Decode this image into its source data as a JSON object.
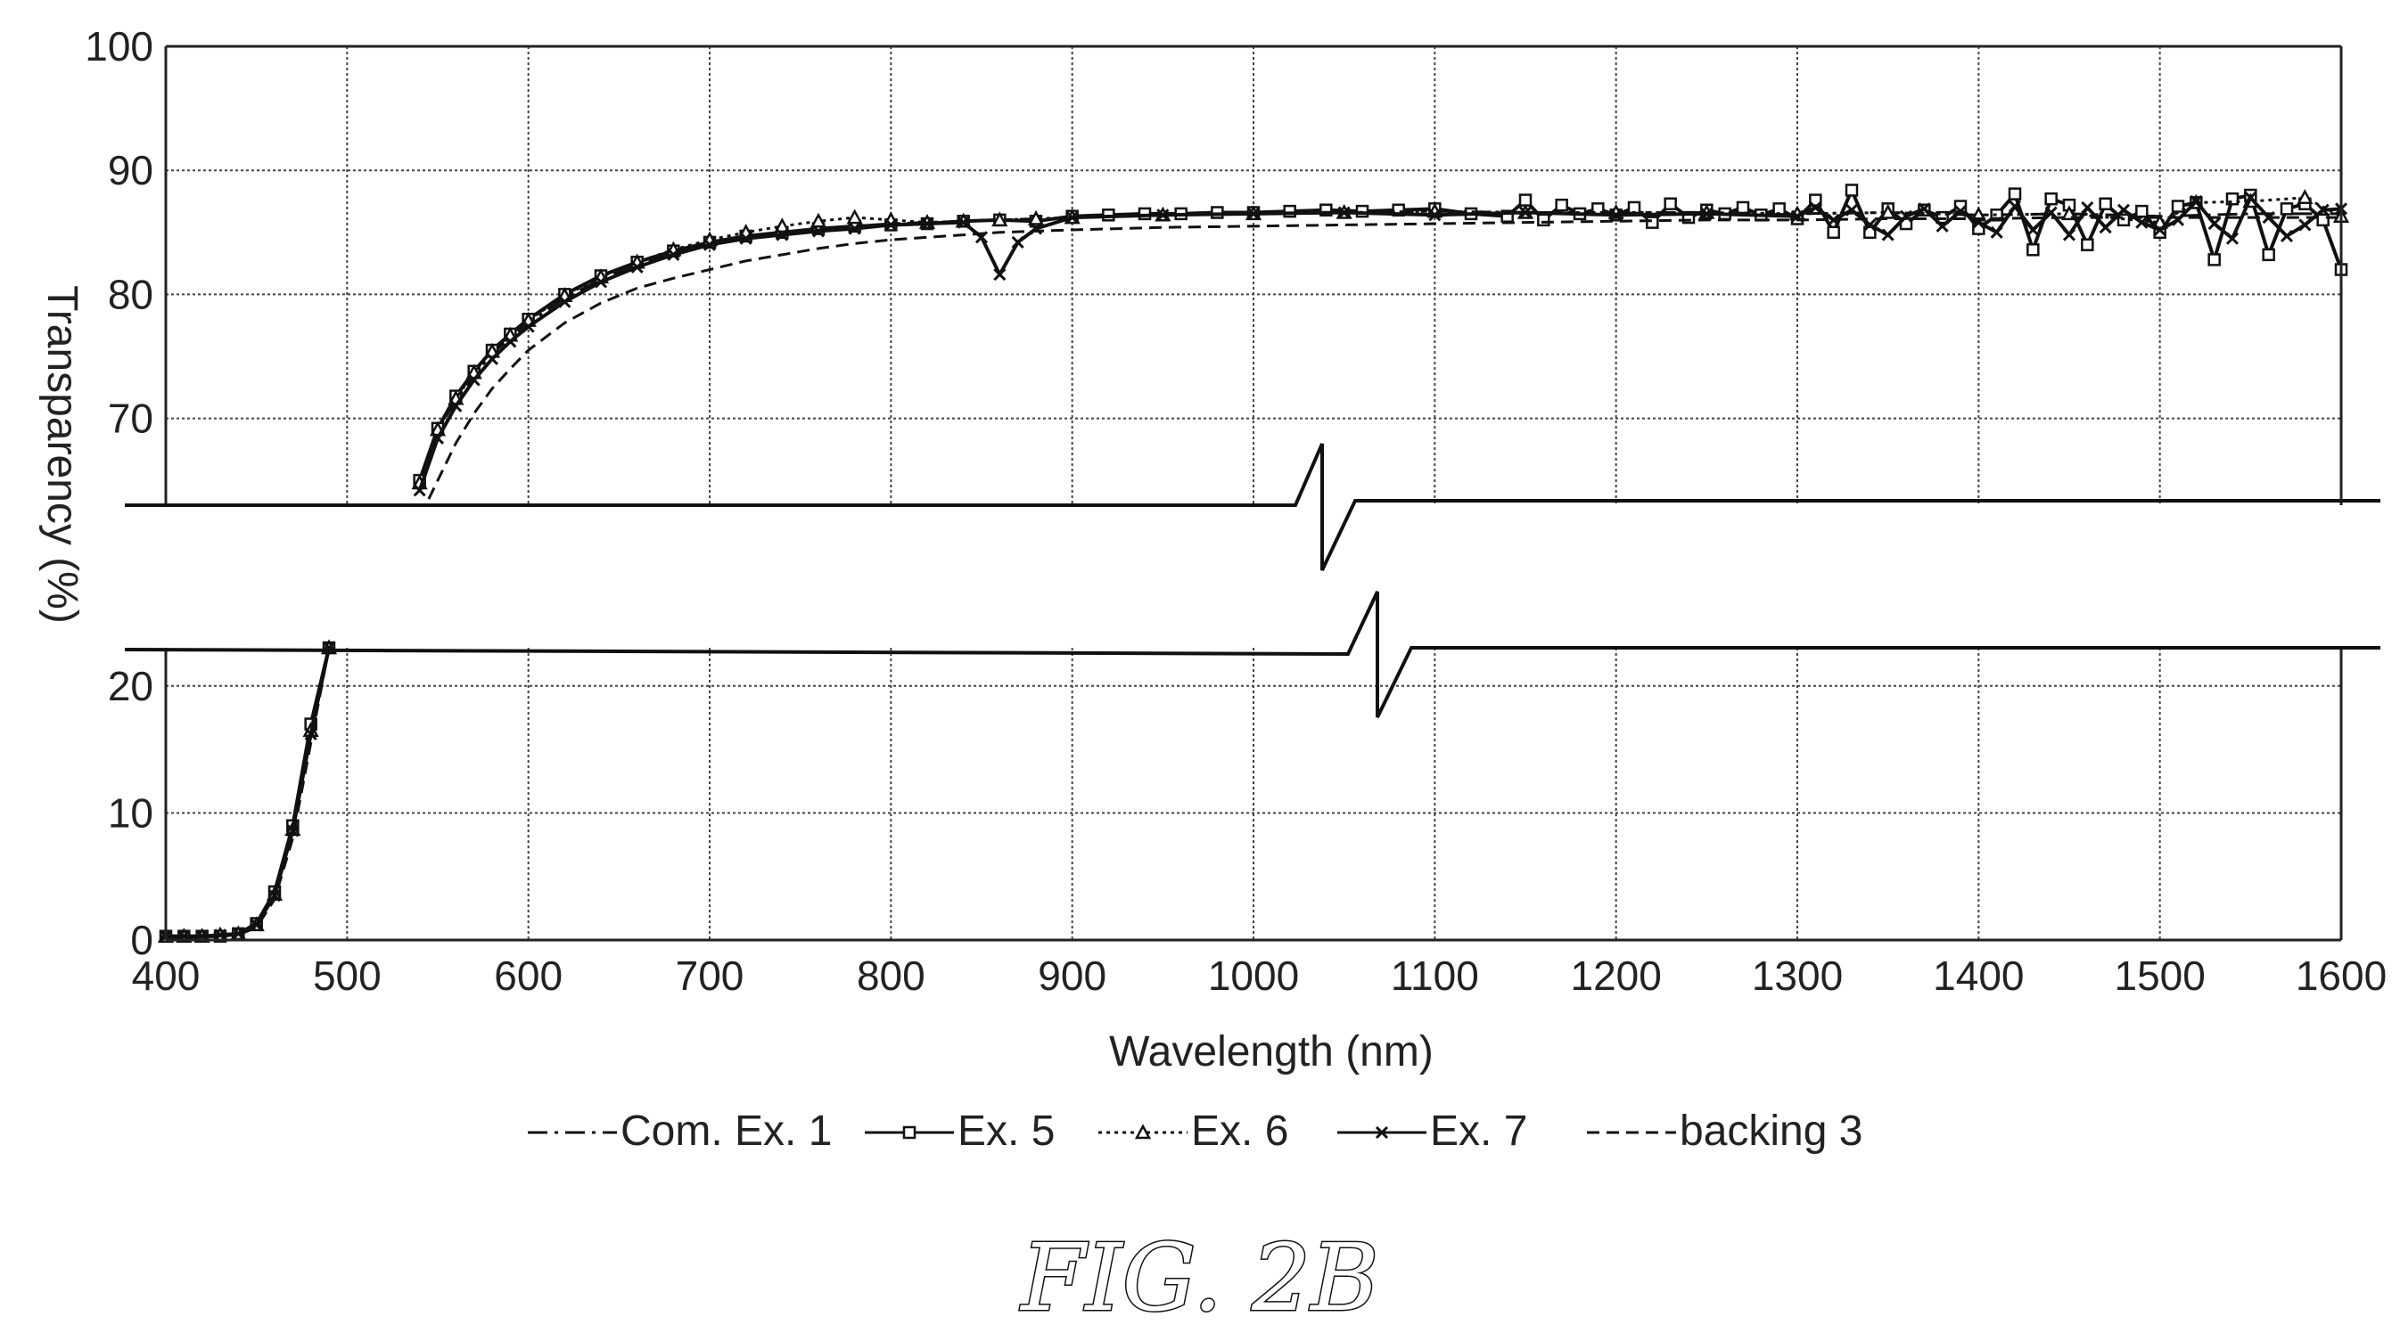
{
  "figure": {
    "caption": "FIG. 2B"
  },
  "chart_data": {
    "type": "line",
    "title": "",
    "xlabel": "Wavelength (nm)",
    "ylabel": "Transparency (%)",
    "xlim": [
      400,
      1600
    ],
    "ylim_upper_panel": [
      63,
      100
    ],
    "ylim_lower_panel": [
      0,
      23
    ],
    "axis_break": "between 23 and 63 on the y axis, break marks near x = 1050",
    "grid": true,
    "legend_position": "bottom",
    "x_ticks": [
      400,
      500,
      600,
      700,
      800,
      900,
      1000,
      1100,
      1200,
      1300,
      1400,
      1500,
      1600
    ],
    "y_ticks": [
      0,
      10,
      20,
      70,
      80,
      90,
      100
    ],
    "series": [
      {
        "name": "Com. Ex. 1",
        "line_style": "dash-dot",
        "marker": "none",
        "x": [
          400,
          410,
          420,
          430,
          440,
          450,
          460,
          470,
          480,
          490,
          540,
          550,
          560,
          570,
          580,
          590,
          600,
          620,
          640,
          660,
          680,
          700,
          720,
          740,
          760,
          780,
          800,
          820,
          840,
          860,
          880,
          900,
          950,
          1000,
          1050,
          1100,
          1150,
          1200,
          1250,
          1300,
          1350,
          1400,
          1450,
          1500,
          1550,
          1600
        ],
        "y": [
          0.3,
          0.3,
          0.3,
          0.4,
          0.5,
          1.2,
          3.5,
          8.5,
          16,
          23,
          64.5,
          69,
          71.5,
          73.5,
          75.2,
          76.5,
          77.7,
          79.7,
          81.2,
          82.4,
          83.3,
          84.0,
          84.5,
          84.9,
          85.2,
          85.5,
          85.7,
          85.8,
          85.9,
          86.0,
          86.1,
          86.2,
          86.4,
          86.5,
          86.6,
          86.7,
          86.6,
          86.6,
          86.6,
          86.5,
          86.6,
          86.4,
          86.5,
          86.3,
          86.5,
          86.5
        ]
      },
      {
        "name": "Ex. 5",
        "line_style": "solid",
        "marker": "square",
        "x": [
          400,
          410,
          420,
          430,
          440,
          450,
          460,
          470,
          480,
          490,
          540,
          550,
          560,
          570,
          580,
          590,
          600,
          620,
          640,
          660,
          680,
          700,
          720,
          740,
          760,
          780,
          800,
          820,
          840,
          860,
          880,
          900,
          920,
          940,
          960,
          980,
          1000,
          1020,
          1040,
          1060,
          1080,
          1100,
          1120,
          1140,
          1150,
          1160,
          1170,
          1180,
          1190,
          1200,
          1210,
          1220,
          1230,
          1240,
          1250,
          1260,
          1270,
          1280,
          1290,
          1300,
          1310,
          1320,
          1330,
          1340,
          1350,
          1360,
          1370,
          1380,
          1390,
          1400,
          1410,
          1420,
          1430,
          1440,
          1450,
          1460,
          1470,
          1480,
          1490,
          1500,
          1510,
          1520,
          1530,
          1540,
          1550,
          1560,
          1570,
          1580,
          1590,
          1600
        ],
        "y": [
          0.3,
          0.3,
          0.3,
          0.3,
          0.5,
          1.3,
          3.8,
          9.0,
          17.0,
          23,
          65,
          69.2,
          71.8,
          73.8,
          75.5,
          76.8,
          78.0,
          80.0,
          81.5,
          82.6,
          83.5,
          84.2,
          84.7,
          85.0,
          85.3,
          85.5,
          85.6,
          85.7,
          85.9,
          86.0,
          85.9,
          86.3,
          86.4,
          86.5,
          86.5,
          86.6,
          86.6,
          86.7,
          86.8,
          86.7,
          86.8,
          86.9,
          86.5,
          86.3,
          87.6,
          86.0,
          87.2,
          86.5,
          86.9,
          86.4,
          87.0,
          85.8,
          87.3,
          86.2,
          86.8,
          86.5,
          87.0,
          86.4,
          86.9,
          86.1,
          87.6,
          85.0,
          88.4,
          85.0,
          86.9,
          85.7,
          86.8,
          86.2,
          87.1,
          85.3,
          86.4,
          88.1,
          83.6,
          87.7,
          87.2,
          84.0,
          87.3,
          86.0,
          86.7,
          85.0,
          87.1,
          87.4,
          82.8,
          87.7,
          88.0,
          83.2,
          86.9,
          87.3,
          86.0,
          82.0
        ]
      },
      {
        "name": "Ex. 6",
        "line_style": "dotted",
        "marker": "triangle",
        "x": [
          400,
          410,
          420,
          430,
          440,
          450,
          460,
          470,
          480,
          490,
          540,
          550,
          560,
          570,
          580,
          590,
          600,
          620,
          640,
          660,
          680,
          700,
          720,
          740,
          760,
          780,
          800,
          820,
          840,
          860,
          880,
          900,
          950,
          1000,
          1050,
          1100,
          1150,
          1200,
          1250,
          1300,
          1350,
          1400,
          1450,
          1500,
          1520,
          1550,
          1580,
          1600
        ],
        "y": [
          0.3,
          0.3,
          0.3,
          0.4,
          0.5,
          1.2,
          3.6,
          8.7,
          16.5,
          23,
          64.8,
          69.1,
          71.6,
          73.7,
          75.4,
          76.7,
          77.9,
          79.9,
          81.4,
          82.6,
          83.6,
          84.4,
          85.0,
          85.5,
          85.9,
          86.2,
          86.0,
          85.8,
          85.9,
          86.0,
          86.1,
          86.2,
          86.4,
          86.5,
          86.6,
          86.7,
          86.6,
          86.6,
          86.6,
          86.5,
          86.6,
          86.4,
          86.5,
          85.8,
          87.4,
          87.5,
          87.8,
          86.3
        ]
      },
      {
        "name": "Ex. 7",
        "line_style": "solid",
        "marker": "cross",
        "x": [
          400,
          410,
          420,
          430,
          440,
          450,
          460,
          470,
          480,
          490,
          540,
          550,
          560,
          570,
          580,
          590,
          600,
          620,
          640,
          660,
          680,
          700,
          720,
          740,
          760,
          780,
          800,
          820,
          840,
          850,
          860,
          870,
          880,
          900,
          950,
          1000,
          1050,
          1100,
          1150,
          1200,
          1250,
          1300,
          1310,
          1320,
          1330,
          1340,
          1350,
          1360,
          1370,
          1380,
          1390,
          1400,
          1410,
          1420,
          1430,
          1440,
          1450,
          1460,
          1470,
          1480,
          1490,
          1500,
          1510,
          1520,
          1530,
          1540,
          1550,
          1560,
          1570,
          1580,
          1590,
          1600
        ],
        "y": [
          0.3,
          0.3,
          0.3,
          0.4,
          0.5,
          1.2,
          3.5,
          8.6,
          16.2,
          23,
          64.2,
          68.4,
          71.0,
          73.1,
          74.8,
          76.2,
          77.4,
          79.4,
          81.0,
          82.2,
          83.2,
          84.0,
          84.5,
          84.8,
          85.1,
          85.3,
          85.6,
          85.7,
          85.8,
          84.6,
          81.6,
          84.2,
          85.3,
          86.2,
          86.4,
          86.5,
          86.6,
          86.4,
          86.6,
          86.4,
          86.5,
          86.3,
          87.0,
          86.0,
          86.8,
          85.6,
          84.8,
          86.3,
          86.9,
          85.5,
          86.7,
          85.8,
          85.0,
          87.1,
          85.2,
          86.6,
          84.8,
          87.0,
          85.4,
          86.8,
          85.8,
          85.2,
          86.0,
          87.5,
          85.7,
          84.5,
          87.8,
          86.2,
          84.7,
          85.6,
          86.8,
          86.9
        ]
      },
      {
        "name": "backing 3",
        "line_style": "dashed",
        "marker": "none",
        "x": [
          400,
          410,
          420,
          430,
          440,
          450,
          460,
          470,
          480,
          490,
          545,
          550,
          560,
          570,
          580,
          590,
          600,
          620,
          640,
          660,
          680,
          700,
          720,
          740,
          760,
          780,
          800,
          820,
          840,
          860,
          880,
          900,
          950,
          1000,
          1050,
          1100,
          1150,
          1200,
          1250,
          1300,
          1350,
          1400,
          1450,
          1500,
          1550,
          1600
        ],
        "y": [
          0.2,
          0.2,
          0.2,
          0.3,
          0.4,
          1.0,
          3.2,
          8.0,
          15.5,
          23,
          63.5,
          65.0,
          68.0,
          70.4,
          72.4,
          74.0,
          75.5,
          77.7,
          79.3,
          80.5,
          81.3,
          82.0,
          82.7,
          83.2,
          83.7,
          84.1,
          84.4,
          84.6,
          84.8,
          85.0,
          85.1,
          85.2,
          85.4,
          85.5,
          85.6,
          85.7,
          85.8,
          85.9,
          86.0,
          86.0,
          86.1,
          86.1,
          86.2,
          86.2,
          86.2,
          86.2
        ]
      }
    ]
  }
}
